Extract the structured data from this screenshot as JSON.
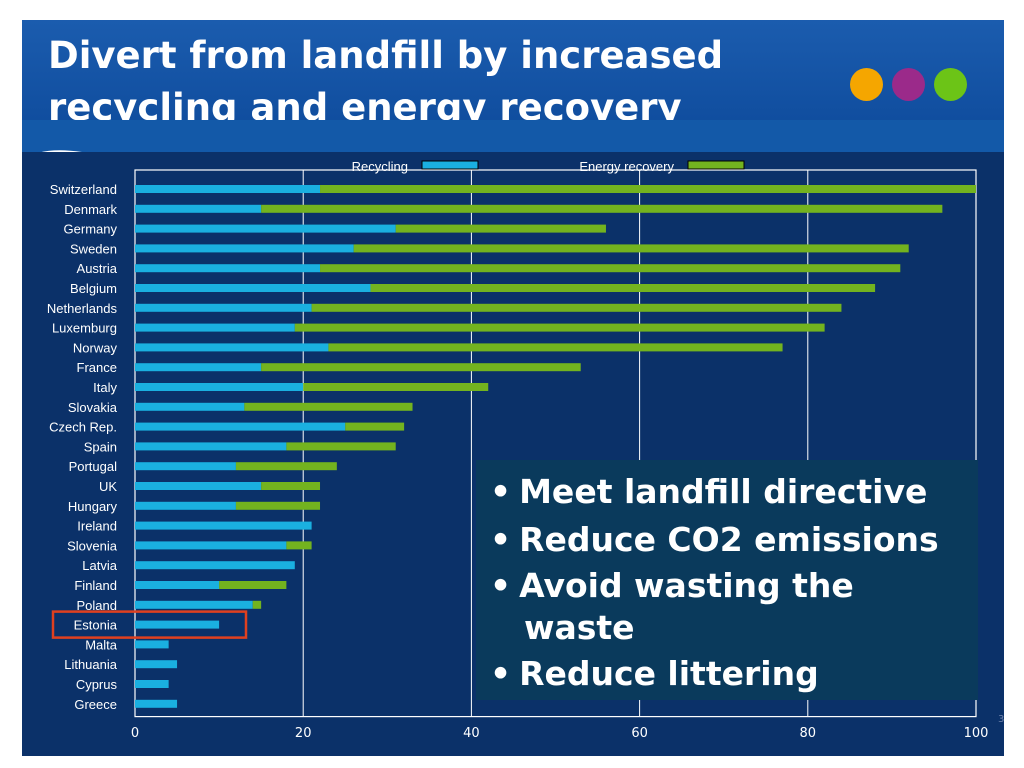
{
  "slide": {
    "title_line1": "Divert from landfill by increased",
    "title_line2_a": "recycling",
    "title_line2_b": "and",
    "title_line2_c": "energy recovery",
    "slide_number": "3",
    "dot_colors": [
      "#f5a600",
      "#9b2a8a",
      "#6cc417"
    ],
    "colors": {
      "header": "#1359a8",
      "panel": "#0b3169",
      "callout": "#0a3a5c",
      "highlight": "#e0401f"
    }
  },
  "callout": {
    "bullets": [
      "Meet  landfill directive",
      "Reduce CO2 emissions",
      "Avoid wasting the",
      "Reduce littering"
    ],
    "bullet3_cont": "waste",
    "marker": "•"
  },
  "chart_data": {
    "type": "bar",
    "orientation": "horizontal",
    "stacked": true,
    "categories": [
      "Switzerland",
      "Denmark",
      "Germany",
      "Sweden",
      "Austria",
      "Belgium",
      "Netherlands",
      "Luxemburg",
      "Norway",
      "France",
      "Italy",
      "Slovakia",
      "Czech Rep.",
      "Spain",
      "Portugal",
      "UK",
      "Hungary",
      "Ireland",
      "Slovenia",
      "Latvia",
      "Finland",
      "Poland",
      "Estonia",
      "Malta",
      "Lithuania",
      "Cyprus",
      "Greece"
    ],
    "series": [
      {
        "name": "Recycling",
        "color": "#1ab0e0",
        "values": [
          22,
          15,
          31,
          26,
          22,
          28,
          21,
          19,
          23,
          15,
          20,
          13,
          25,
          18,
          12,
          15,
          12,
          21,
          18,
          19,
          10,
          14,
          10,
          4,
          5,
          4,
          5
        ]
      },
      {
        "name": "Energy recovery",
        "color": "#73b31f",
        "values": [
          78,
          81,
          25,
          66,
          69,
          60,
          63,
          63,
          54,
          38,
          22,
          20,
          7,
          13,
          12,
          7,
          10,
          0,
          3,
          0,
          8,
          1,
          0,
          0,
          0,
          0,
          0
        ]
      }
    ],
    "xlim": [
      0,
      100
    ],
    "xticks": [
      0,
      20,
      40,
      60,
      80,
      100
    ],
    "grid": true,
    "legend_position": "top",
    "highlight": "Estonia"
  }
}
